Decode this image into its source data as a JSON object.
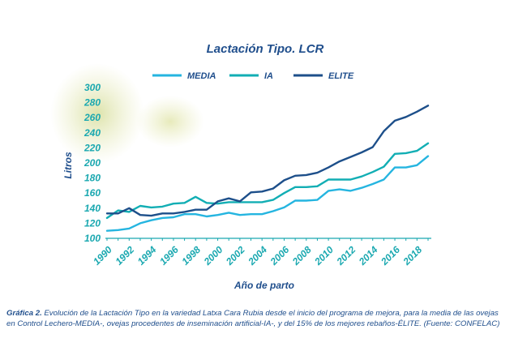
{
  "chart_data": {
    "type": "line",
    "title": "Lactación Tipo. LCR",
    "xlabel": "Año de parto",
    "ylabel": "Litros",
    "xlim": [
      1990,
      2019
    ],
    "ylim": [
      100,
      300
    ],
    "yticks": [
      100,
      120,
      140,
      160,
      180,
      200,
      220,
      240,
      260,
      280,
      300
    ],
    "xticks": [
      1990,
      1992,
      1994,
      1996,
      1998,
      2000,
      2002,
      2004,
      2006,
      2008,
      2010,
      2012,
      2014,
      2016,
      2018
    ],
    "x": [
      1990,
      1991,
      1992,
      1993,
      1994,
      1995,
      1996,
      1997,
      1998,
      1999,
      2000,
      2001,
      2002,
      2003,
      2004,
      2005,
      2006,
      2007,
      2008,
      2009,
      2010,
      2011,
      2012,
      2013,
      2014,
      2015,
      2016,
      2017,
      2018,
      2019
    ],
    "legend_position": "top",
    "grid": false,
    "series": [
      {
        "name": "MEDIA",
        "color": "#25b5e0",
        "values": [
          110,
          111,
          113,
          120,
          124,
          127,
          128,
          132,
          132,
          129,
          131,
          134,
          131,
          132,
          132,
          136,
          141,
          150,
          150,
          151,
          163,
          165,
          163,
          167,
          172,
          178,
          194,
          194,
          197,
          209
        ]
      },
      {
        "name": "IA",
        "color": "#12aeb4",
        "values": [
          127,
          137,
          135,
          143,
          141,
          142,
          146,
          147,
          155,
          147,
          146,
          148,
          148,
          148,
          148,
          151,
          160,
          168,
          168,
          169,
          178,
          178,
          178,
          182,
          188,
          195,
          212,
          213,
          216,
          226
        ]
      },
      {
        "name": "ELITE",
        "color": "#1d4f8a",
        "values": [
          133,
          133,
          140,
          131,
          130,
          133,
          133,
          135,
          138,
          138,
          149,
          153,
          149,
          161,
          162,
          166,
          177,
          183,
          184,
          187,
          194,
          202,
          208,
          214,
          221,
          242,
          256,
          261,
          268,
          276
        ]
      }
    ]
  },
  "caption": {
    "lead": "Gráfica 2.",
    "text": "Evolución de la Lactación Tipo en la variedad Latxa Cara Rubia desde el inicio del programa de mejora, para la media de las ovejas en Control Lechero-MEDIA-, ovejas procedentes de inseminación artificial-IA-, y del 15% de los mejores rebaños-ÉLITE. (Fuente: CONFELAC)"
  }
}
